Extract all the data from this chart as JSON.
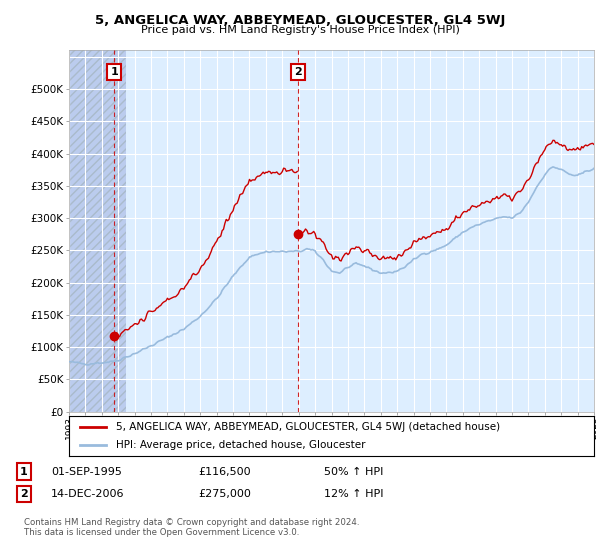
{
  "title": "5, ANGELICA WAY, ABBEYMEAD, GLOUCESTER, GL4 5WJ",
  "subtitle": "Price paid vs. HM Land Registry's House Price Index (HPI)",
  "property_label": "5, ANGELICA WAY, ABBEYMEAD, GLOUCESTER, GL4 5WJ (detached house)",
  "hpi_label": "HPI: Average price, detached house, Gloucester",
  "transaction1_date": "01-SEP-1995",
  "transaction1_price": 116500,
  "transaction1_info": "50% ↑ HPI",
  "transaction2_date": "14-DEC-2006",
  "transaction2_price": 275000,
  "transaction2_info": "12% ↑ HPI",
  "footer": "Contains HM Land Registry data © Crown copyright and database right 2024.\nThis data is licensed under the Open Government Licence v3.0.",
  "property_color": "#cc0000",
  "hpi_color": "#99bbdd",
  "label_box_color": "#cc0000",
  "ylim": [
    0,
    560000
  ],
  "yticks": [
    0,
    50000,
    100000,
    150000,
    200000,
    250000,
    300000,
    350000,
    400000,
    450000,
    500000,
    550000
  ],
  "background_color": "#ffffff",
  "plot_bg_color": "#ddeeff",
  "hatch_color": "#bbccee"
}
